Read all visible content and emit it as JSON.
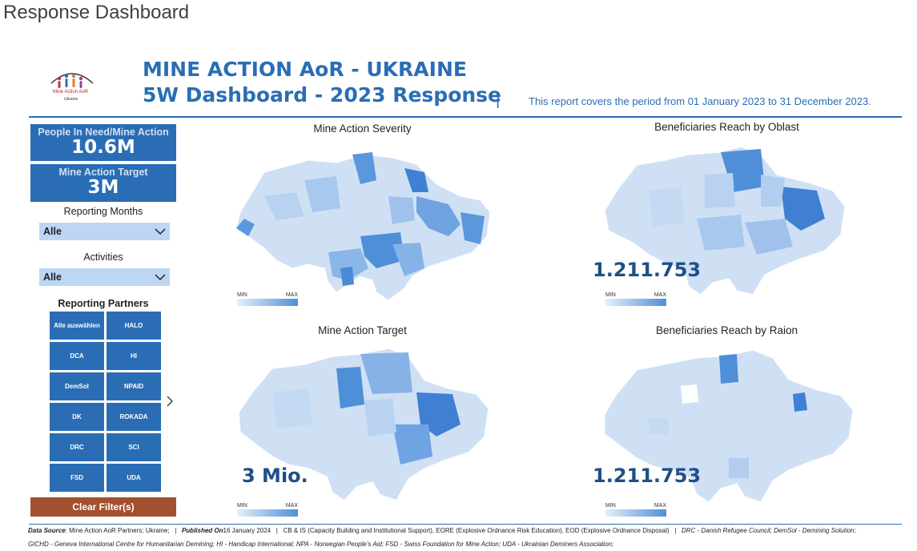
{
  "page_title": "Response Dashboard",
  "logo": {
    "line1": "Mine Action AoR",
    "line2": "Ukraine"
  },
  "header": {
    "title_line1": "MINE ACTION AoR - UKRAINE",
    "title_line2": "5W Dashboard - 2023 Response",
    "separator": "|",
    "period": "This report covers the period from 01 January 2023 to 31 December 2023."
  },
  "kpis": {
    "pin_label": "People In Need/Mine Action",
    "pin_value": "10.6M",
    "target_label": "Mine Action Target",
    "target_value": "3M"
  },
  "filters": {
    "months_label": "Reporting Months",
    "months_value": "Alle",
    "activities_label": "Activities",
    "activities_value": "Alle",
    "partners_label": "Reporting Partners",
    "partners": [
      "Alle auswählen",
      "HALO",
      "DCA",
      "HI",
      "DemSol",
      "NPAID",
      "DK",
      "ROKADA",
      "DRC",
      "SCI",
      "FSD",
      "UDA"
    ],
    "clear_label": "Clear Filter(s)"
  },
  "maps": {
    "severity": {
      "title": "Mine Action Severity",
      "legend_min": "MIN",
      "legend_max": "MAX"
    },
    "oblast": {
      "title": "Beneficiaries Reach by Oblast",
      "value": "1.211.753",
      "legend_min": "MIN",
      "legend_max": "MAX"
    },
    "target": {
      "title": "Mine Action Target",
      "value": "3 Mio.",
      "legend_min": "MIN",
      "legend_max": "MAX"
    },
    "raion": {
      "title": "Beneficiaries Reach by Raion",
      "value": "1.211.753",
      "legend_min": "MIN",
      "legend_max": "MAX"
    }
  },
  "colors": {
    "primary": "#2a6db5",
    "light": "#bcd6f3",
    "clear_button": "#a3502f"
  },
  "footer": {
    "source_label": "Data Source",
    "source_text": ": Mine Action AoR Partners; Ukraine;",
    "published_label": "Published On",
    "published_text": "16 January 2024",
    "abbrev1": "CB & IS (Capacity Building and Institutional Support), EORE (Explosive Ordnance Risk Education), EOD (Explosive Ordnance Disposal)",
    "abbrev2": "DRC - Danish Refugee Council; DemSol - Demining Solution;",
    "line2": "GICHD - Geneva International Centre for Humanitarian Demining; HI - Handicap International; NPA - Norwegian People's Aid; FSD - Swiss Foundation for Mine Action; UDA - Ukrainian Deminers Association;"
  }
}
